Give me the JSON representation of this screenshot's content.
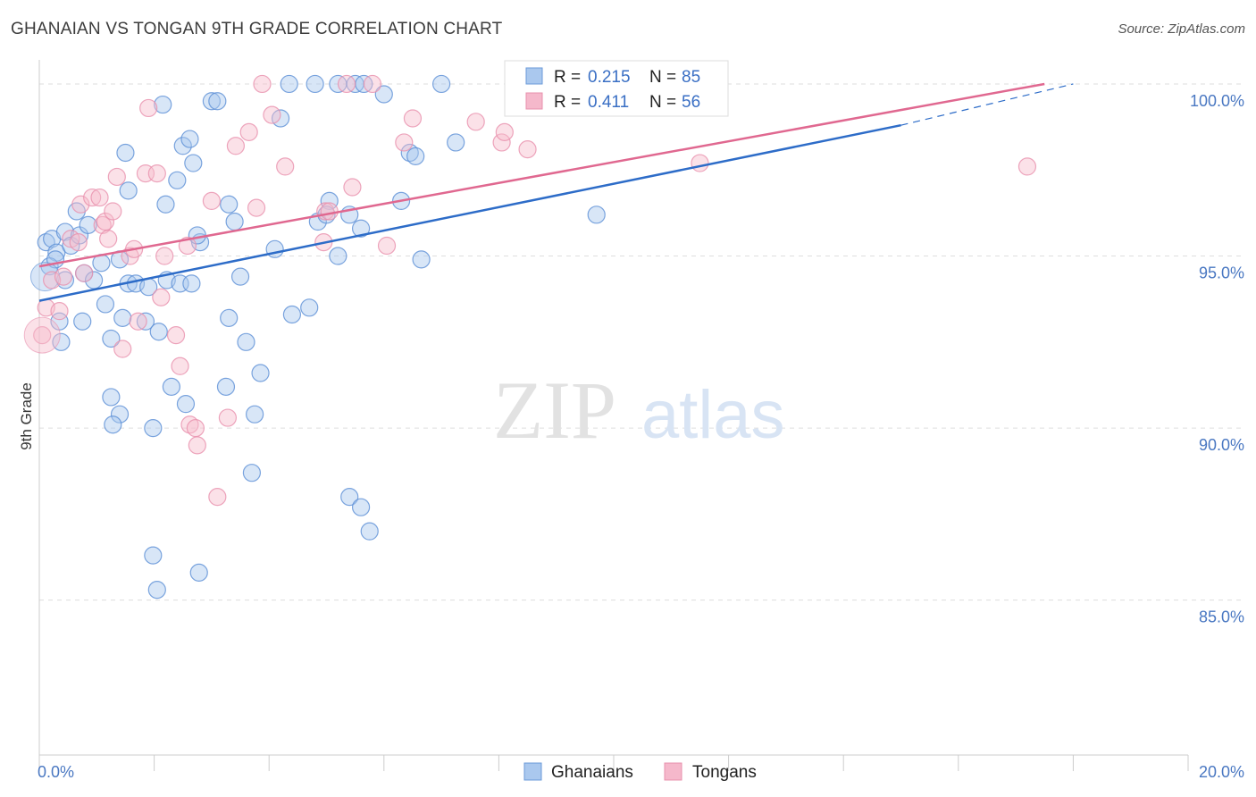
{
  "header": {
    "title": "GHANAIAN VS TONGAN 9TH GRADE CORRELATION CHART",
    "source": "Source: ZipAtlas.com"
  },
  "watermark": {
    "part1": "ZIP",
    "part2": "atlas"
  },
  "legend_top": {
    "rows": [
      {
        "r_label": "R =",
        "r_value": "0.215",
        "n_label": "N =",
        "n_value": "85",
        "color": "#aac8ee"
      },
      {
        "r_label": "R =",
        "r_value": "0.411",
        "n_label": "N =",
        "n_value": "56",
        "color": "#f5b8cb"
      }
    ]
  },
  "legend_bottom": {
    "items": [
      "Ghanaians",
      "Tongans"
    ]
  },
  "colors": {
    "blue_fill": "#a9c7ee",
    "blue_stroke": "#5b8fd6",
    "blue_line": "#2d6cc8",
    "pink_fill": "#f6bccd",
    "pink_stroke": "#e890ad",
    "pink_line": "#e06890",
    "grid": "#dddddd",
    "tick_text": "#4a78c2"
  },
  "chart_data": {
    "type": "scatter",
    "title": "GHANAIAN VS TONGAN 9TH GRADE CORRELATION CHART",
    "xlabel": "",
    "ylabel": "9th Grade",
    "xlim": [
      0,
      20
    ],
    "ylim": [
      80.5,
      100.7
    ],
    "x_tick_labels": [
      "0.0%",
      "20.0%"
    ],
    "y_ticks": [
      85,
      90,
      95,
      100
    ],
    "y_tick_labels": [
      "85.0%",
      "90.0%",
      "95.0%",
      "100.0%"
    ],
    "grid": true,
    "series": [
      {
        "name": "Ghanaians",
        "R": 0.215,
        "N": 85,
        "trend": {
          "x_start": 0,
          "y_start": 93.7,
          "x_end": 15.0,
          "y_end": 98.8,
          "dashed_to_x": 18.0,
          "dashed_to_y": 100.0
        },
        "points": [
          [
            0.12,
            95.4
          ],
          [
            0.22,
            95.5
          ],
          [
            0.3,
            95.1
          ],
          [
            0.45,
            95.7
          ],
          [
            0.55,
            95.3
          ],
          [
            0.65,
            96.3
          ],
          [
            0.7,
            95.6
          ],
          [
            0.85,
            95.9
          ],
          [
            0.18,
            94.7
          ],
          [
            0.28,
            94.9
          ],
          [
            0.45,
            94.3
          ],
          [
            0.78,
            94.5
          ],
          [
            0.95,
            94.3
          ],
          [
            1.08,
            94.8
          ],
          [
            1.15,
            93.6
          ],
          [
            1.4,
            94.9
          ],
          [
            0.35,
            93.1
          ],
          [
            0.75,
            93.1
          ],
          [
            1.25,
            92.6
          ],
          [
            1.45,
            93.2
          ],
          [
            1.85,
            93.1
          ],
          [
            1.55,
            94.2
          ],
          [
            1.68,
            94.2
          ],
          [
            2.08,
            92.8
          ],
          [
            2.3,
            91.2
          ],
          [
            2.55,
            90.7
          ],
          [
            1.4,
            90.4
          ],
          [
            1.25,
            90.9
          ],
          [
            1.28,
            90.1
          ],
          [
            1.98,
            90.0
          ],
          [
            1.9,
            94.1
          ],
          [
            2.22,
            94.3
          ],
          [
            2.45,
            94.2
          ],
          [
            2.65,
            94.2
          ],
          [
            2.8,
            95.4
          ],
          [
            2.75,
            95.6
          ],
          [
            2.4,
            97.2
          ],
          [
            2.5,
            98.2
          ],
          [
            2.62,
            98.4
          ],
          [
            2.68,
            97.7
          ],
          [
            2.2,
            96.5
          ],
          [
            2.15,
            99.4
          ],
          [
            3.0,
            99.5
          ],
          [
            3.1,
            99.5
          ],
          [
            3.3,
            96.5
          ],
          [
            3.4,
            96.0
          ],
          [
            3.5,
            94.4
          ],
          [
            3.6,
            92.5
          ],
          [
            3.85,
            91.6
          ],
          [
            3.75,
            90.4
          ],
          [
            3.7,
            88.7
          ],
          [
            3.3,
            93.2
          ],
          [
            3.25,
            91.2
          ],
          [
            4.1,
            95.2
          ],
          [
            4.4,
            93.3
          ],
          [
            4.7,
            93.5
          ],
          [
            4.85,
            96.0
          ],
          [
            5.05,
            96.6
          ],
          [
            5.0,
            96.2
          ],
          [
            5.2,
            95.0
          ],
          [
            5.4,
            96.2
          ],
          [
            5.6,
            95.8
          ],
          [
            4.2,
            99.0
          ],
          [
            4.35,
            100.0
          ],
          [
            4.8,
            100.0
          ],
          [
            5.5,
            100.0
          ],
          [
            5.65,
            100.0
          ],
          [
            6.0,
            99.7
          ],
          [
            6.3,
            96.6
          ],
          [
            6.45,
            98.0
          ],
          [
            6.55,
            97.9
          ],
          [
            6.65,
            94.9
          ],
          [
            5.4,
            88.0
          ],
          [
            5.6,
            87.7
          ],
          [
            5.75,
            87.0
          ],
          [
            7.0,
            100.0
          ],
          [
            7.25,
            98.3
          ],
          [
            9.7,
            96.2
          ],
          [
            1.5,
            98.0
          ],
          [
            1.55,
            96.9
          ],
          [
            2.05,
            85.3
          ],
          [
            1.98,
            86.3
          ],
          [
            2.78,
            85.8
          ],
          [
            0.38,
            92.5
          ],
          [
            5.2,
            100.0
          ]
        ]
      },
      {
        "name": "Tongans",
        "R": 0.411,
        "N": 56,
        "trend": {
          "x_start": 0,
          "y_start": 94.7,
          "x_end": 17.5,
          "y_end": 100.0
        },
        "points": [
          [
            0.05,
            92.7
          ],
          [
            0.12,
            93.5
          ],
          [
            0.22,
            94.3
          ],
          [
            0.35,
            93.4
          ],
          [
            0.42,
            94.4
          ],
          [
            0.55,
            95.5
          ],
          [
            0.68,
            95.4
          ],
          [
            0.72,
            96.5
          ],
          [
            0.78,
            94.5
          ],
          [
            0.92,
            96.7
          ],
          [
            1.05,
            96.7
          ],
          [
            1.1,
            95.9
          ],
          [
            1.15,
            96.0
          ],
          [
            1.2,
            95.5
          ],
          [
            1.28,
            96.3
          ],
          [
            1.35,
            97.3
          ],
          [
            1.45,
            92.3
          ],
          [
            1.58,
            95.0
          ],
          [
            1.65,
            95.2
          ],
          [
            1.72,
            93.1
          ],
          [
            1.85,
            97.4
          ],
          [
            1.9,
            99.3
          ],
          [
            2.05,
            97.4
          ],
          [
            2.12,
            93.8
          ],
          [
            2.18,
            95.0
          ],
          [
            2.38,
            92.7
          ],
          [
            2.45,
            91.8
          ],
          [
            2.58,
            95.3
          ],
          [
            2.62,
            90.1
          ],
          [
            2.72,
            90.0
          ],
          [
            2.75,
            89.5
          ],
          [
            3.0,
            96.6
          ],
          [
            3.1,
            88.0
          ],
          [
            3.28,
            90.3
          ],
          [
            3.42,
            98.2
          ],
          [
            3.65,
            98.6
          ],
          [
            3.78,
            96.4
          ],
          [
            3.88,
            100.0
          ],
          [
            4.05,
            99.1
          ],
          [
            4.28,
            97.6
          ],
          [
            4.95,
            95.4
          ],
          [
            4.98,
            96.3
          ],
          [
            5.05,
            96.3
          ],
          [
            5.35,
            100.0
          ],
          [
            5.45,
            97.0
          ],
          [
            5.8,
            100.0
          ],
          [
            6.05,
            95.3
          ],
          [
            6.35,
            98.3
          ],
          [
            6.5,
            99.0
          ],
          [
            7.6,
            98.9
          ],
          [
            8.05,
            98.3
          ],
          [
            8.1,
            98.6
          ],
          [
            8.5,
            98.1
          ],
          [
            10.3,
            99.4
          ],
          [
            11.5,
            97.7
          ],
          [
            17.2,
            97.6
          ]
        ]
      }
    ]
  }
}
